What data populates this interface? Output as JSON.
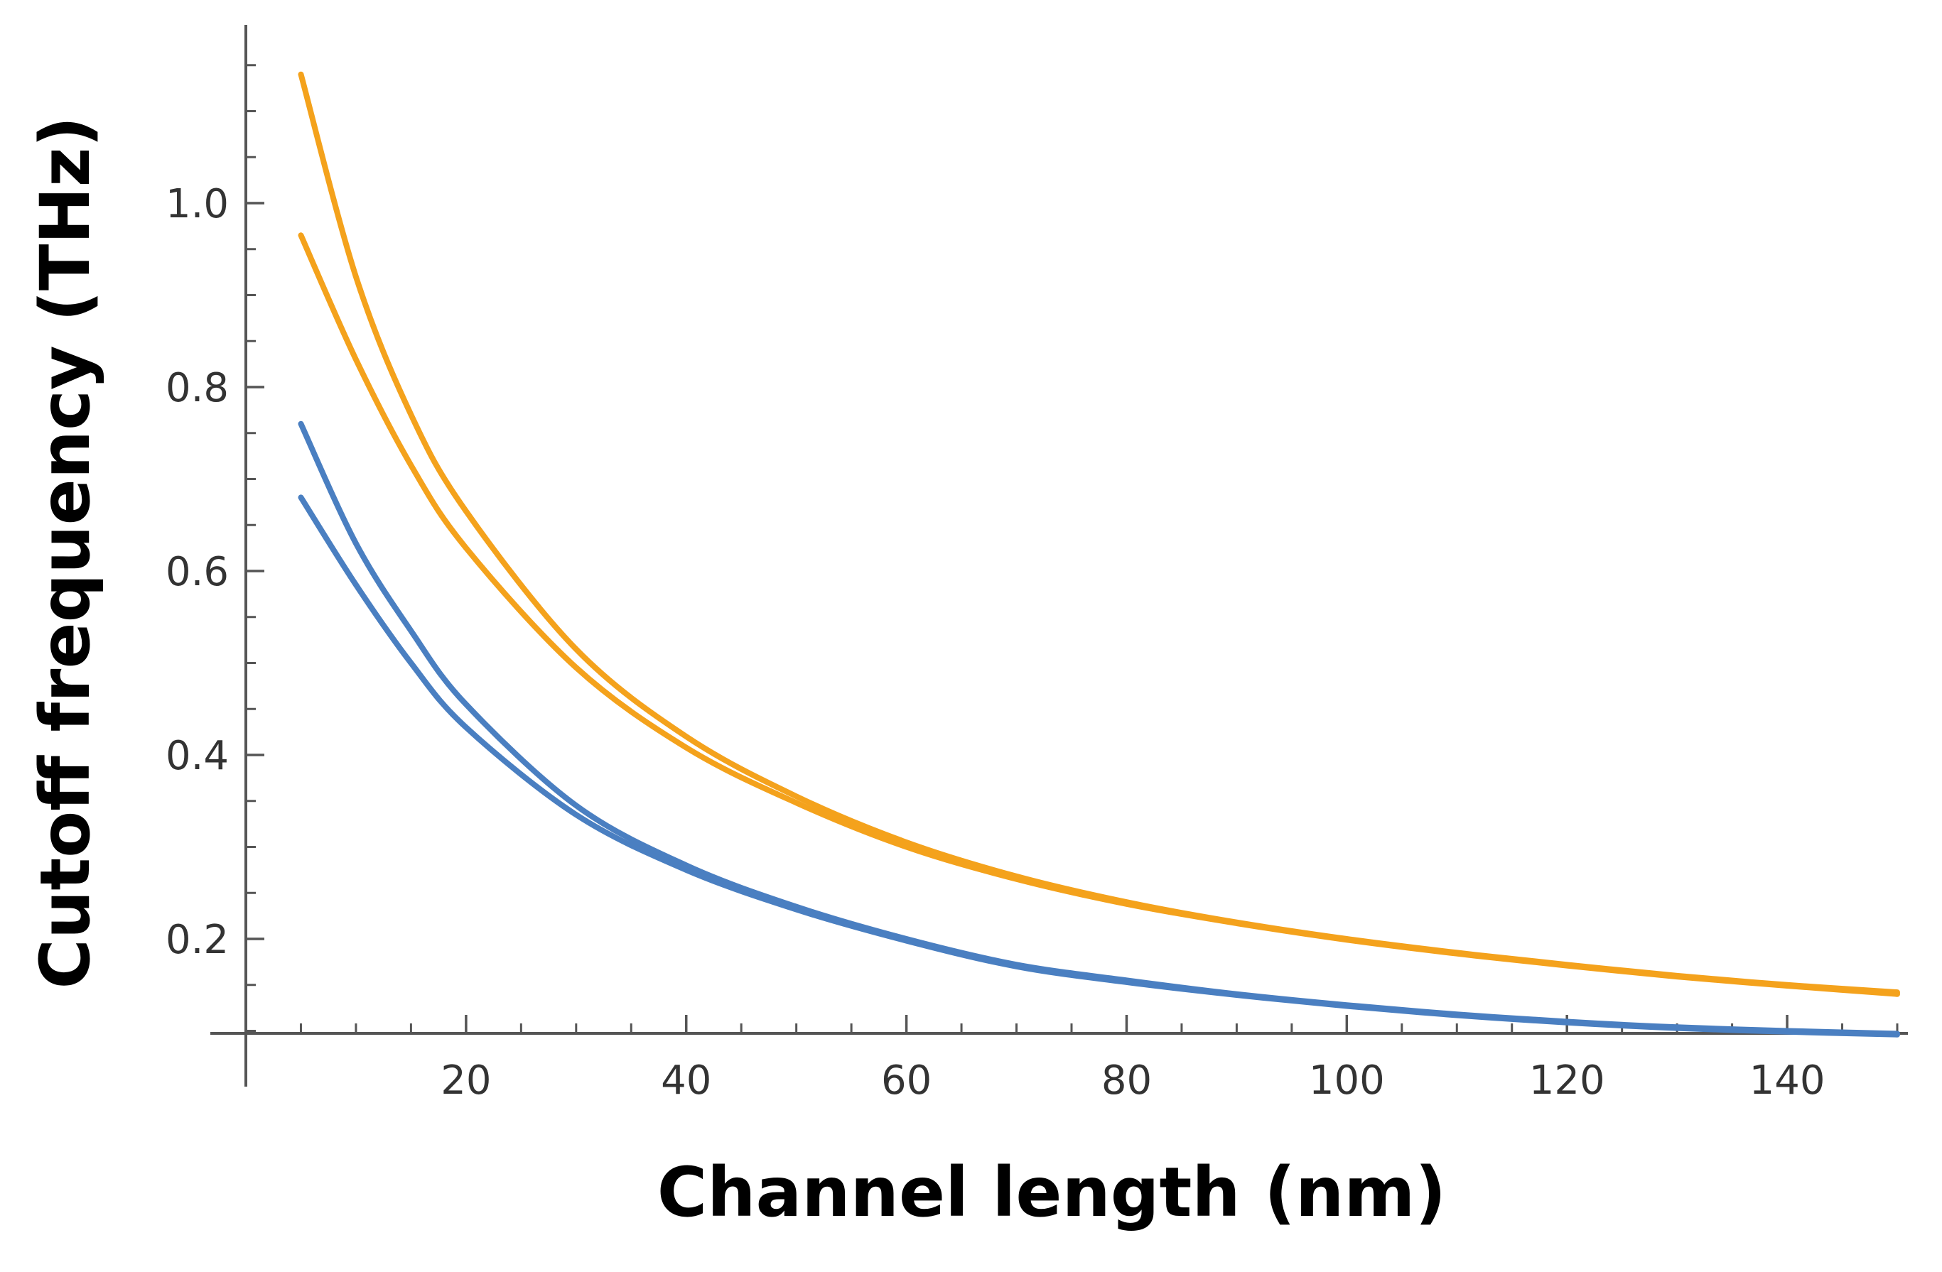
{
  "chart_data": {
    "type": "line",
    "title": "",
    "xlabel": "Channel length (nm)",
    "ylabel": "Cutoff frequency (THz)",
    "xlim": [
      0,
      150
    ],
    "ylim": [
      0.095,
      1.18
    ],
    "x_ticks": [
      20,
      40,
      60,
      80,
      100,
      120,
      140
    ],
    "x_tick_labels": [
      "20",
      "40",
      "60",
      "80",
      "100",
      "120",
      "140"
    ],
    "y_ticks": [
      0.2,
      0.4,
      0.6,
      0.8,
      1.0
    ],
    "y_tick_labels": [
      "0.2",
      "0.4",
      "0.6",
      "0.8",
      "1.0"
    ],
    "x_minor_step": 5,
    "y_minor_step": 0.05,
    "grid": false,
    "legend": "none",
    "colors": {
      "orange": "#f4a21c",
      "blue": "#4a7fc1",
      "axis": "#555555"
    },
    "series": [
      {
        "color": "#f4a21c",
        "x": [
          5,
          10,
          15,
          20,
          30,
          40,
          50,
          60,
          70,
          80,
          90,
          100,
          110,
          120,
          130,
          140,
          150
        ],
        "values": [
          1.14,
          0.92,
          0.77,
          0.665,
          0.515,
          0.42,
          0.355,
          0.305,
          0.268,
          0.24,
          0.218,
          0.2,
          0.185,
          0.172,
          0.16,
          0.15,
          0.142
        ]
      },
      {
        "color": "#f4a21c",
        "x": [
          5,
          10,
          15,
          20,
          30,
          40,
          50,
          60,
          70,
          80,
          90,
          100,
          110,
          120,
          130,
          140,
          150
        ],
        "values": [
          0.965,
          0.83,
          0.715,
          0.625,
          0.495,
          0.408,
          0.348,
          0.3,
          0.265,
          0.238,
          0.217,
          0.199,
          0.184,
          0.171,
          0.159,
          0.149,
          0.14
        ]
      },
      {
        "color": "#4a7fc1",
        "x": [
          5,
          10,
          15,
          20,
          30,
          40,
          50,
          60,
          70,
          80,
          90,
          100,
          110,
          120,
          130,
          140,
          150
        ],
        "values": [
          0.76,
          0.63,
          0.535,
          0.455,
          0.345,
          0.28,
          0.235,
          0.2,
          0.172,
          0.155,
          0.14,
          0.128,
          0.118,
          0.11,
          0.104,
          0.1,
          0.097
        ]
      },
      {
        "color": "#4a7fc1",
        "x": [
          5,
          10,
          15,
          20,
          30,
          40,
          50,
          60,
          70,
          80,
          90,
          100,
          110,
          120,
          130,
          140,
          150
        ],
        "values": [
          0.68,
          0.585,
          0.5,
          0.43,
          0.335,
          0.275,
          0.232,
          0.198,
          0.17,
          0.153,
          0.139,
          0.127,
          0.117,
          0.109,
          0.103,
          0.099,
          0.096
        ]
      }
    ]
  }
}
